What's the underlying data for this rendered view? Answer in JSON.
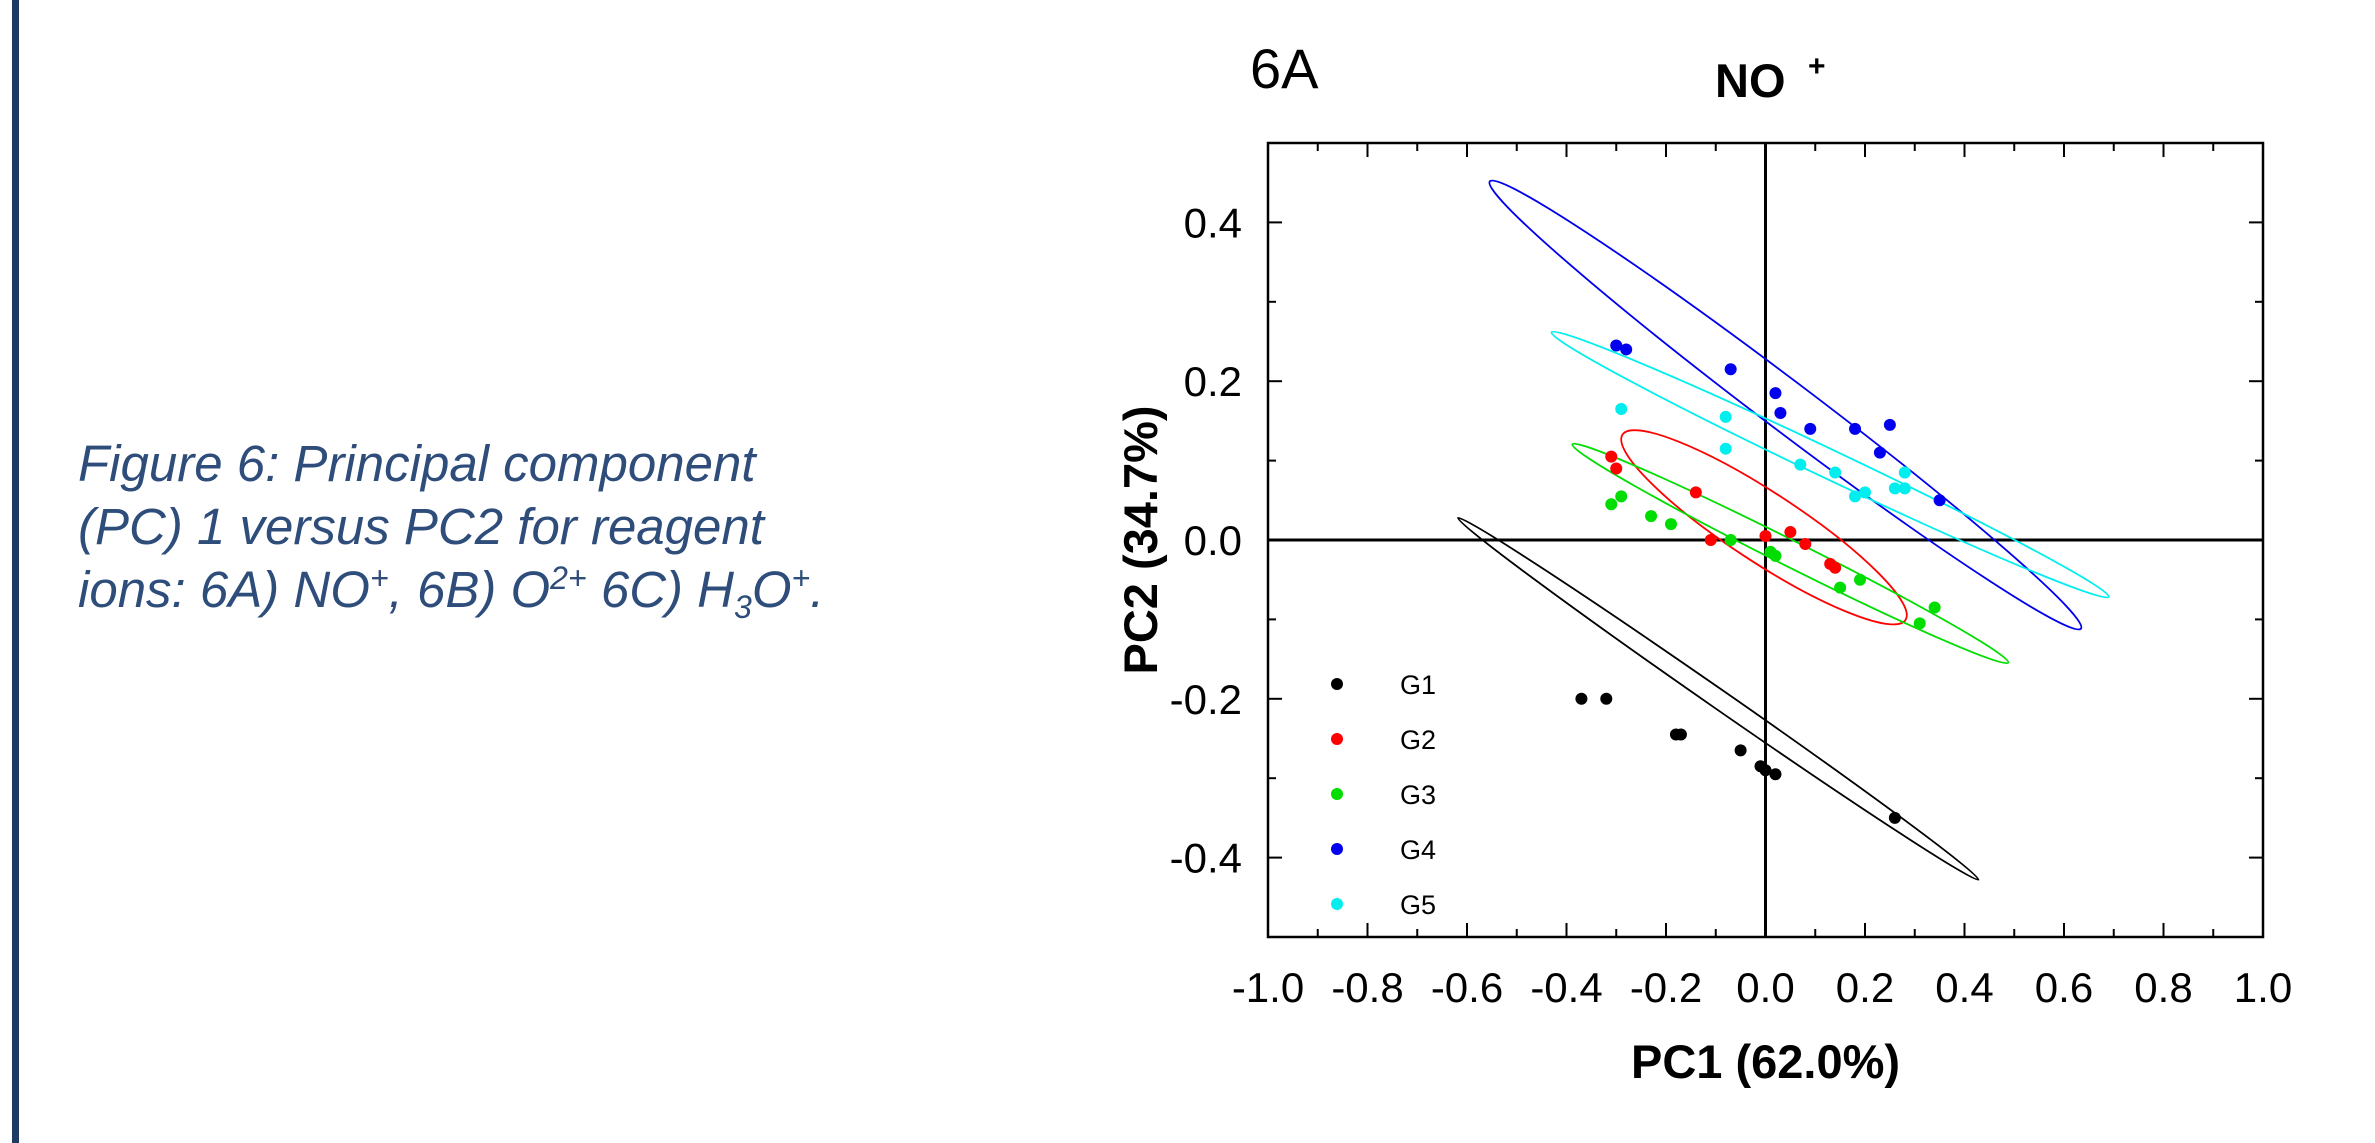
{
  "caption": {
    "line1": " Figure 6: Principal component",
    "line2": "(PC) 1 versus PC2 for reagent",
    "line3_a": "ions: 6A) NO",
    "line3_sup1": "+",
    "line3_b": ", 6B) O",
    "line3_sup2": "2+",
    "line3_c": " 6C) H",
    "line3_sub": "3",
    "line3_d": "O",
    "line3_sup3": "+",
    "line3_e": "."
  },
  "colors": {
    "caption": "#2e4d7a",
    "border": "#1f3a63",
    "G1": "#000000",
    "G2": "#ff0000",
    "G3": "#00dd00",
    "G4": "#0000ee",
    "G5": "#00eeee"
  },
  "chart_data": {
    "type": "scatter",
    "panel_label": "6A",
    "title": "NO",
    "title_sup": "+",
    "xlabel": "PC1 (62.0%)",
    "ylabel": "PC2 (34.7%)",
    "xlim": [
      -1.0,
      1.0
    ],
    "ylim": [
      -0.5,
      0.5
    ],
    "xticks": [
      "-1.0",
      "-0.8",
      "-0.6",
      "-0.4",
      "-0.2",
      "0.0",
      "0.2",
      "0.4",
      "0.6",
      "0.8",
      "1.0"
    ],
    "yticks": [
      "-0.4",
      "-0.2",
      "0.0",
      "0.2",
      "0.4"
    ],
    "legend_position": "bottom-left",
    "series": [
      {
        "name": "G1",
        "color": "#000000",
        "points": [
          [
            -0.37,
            -0.2
          ],
          [
            -0.32,
            -0.2
          ],
          [
            -0.18,
            -0.245
          ],
          [
            -0.17,
            -0.245
          ],
          [
            -0.05,
            -0.265
          ],
          [
            -0.01,
            -0.285
          ],
          [
            0.0,
            -0.29
          ],
          [
            0.02,
            -0.295
          ],
          [
            0.26,
            -0.35
          ]
        ],
        "ellipse": {
          "cx": -0.095,
          "cy": -0.2,
          "rx": 0.637,
          "ry": 0.019,
          "angle_deg": -34.8
        }
      },
      {
        "name": "G2",
        "color": "#ff0000",
        "points": [
          [
            -0.31,
            0.105
          ],
          [
            -0.3,
            0.09
          ],
          [
            -0.14,
            0.06
          ],
          [
            -0.11,
            0.0
          ],
          [
            0.0,
            0.005
          ],
          [
            0.05,
            0.01
          ],
          [
            0.08,
            -0.005
          ],
          [
            0.13,
            -0.03
          ],
          [
            0.14,
            -0.035
          ]
        ],
        "ellipse": {
          "cx": -0.003,
          "cy": 0.016,
          "rx": 0.34,
          "ry": 0.07,
          "angle_deg": -33.2
        }
      },
      {
        "name": "G3",
        "color": "#00dd00",
        "points": [
          [
            -0.31,
            0.045
          ],
          [
            -0.29,
            0.055
          ],
          [
            -0.23,
            0.03
          ],
          [
            -0.19,
            0.02
          ],
          [
            -0.07,
            0.0
          ],
          [
            0.01,
            -0.015
          ],
          [
            0.02,
            -0.02
          ],
          [
            0.15,
            -0.06
          ],
          [
            0.19,
            -0.05
          ],
          [
            0.31,
            -0.105
          ],
          [
            0.34,
            -0.085
          ]
        ],
        "ellipse": {
          "cx": 0.05,
          "cy": -0.017,
          "rx": 0.49,
          "ry": 0.026,
          "angle_deg": -26.6
        }
      },
      {
        "name": "G4",
        "color": "#0000ee",
        "points": [
          [
            -0.3,
            0.245
          ],
          [
            -0.28,
            0.24
          ],
          [
            -0.07,
            0.215
          ],
          [
            0.02,
            0.185
          ],
          [
            0.03,
            0.16
          ],
          [
            0.09,
            0.14
          ],
          [
            0.18,
            0.14
          ],
          [
            0.23,
            0.11
          ],
          [
            0.25,
            0.145
          ],
          [
            0.35,
            0.05
          ]
        ],
        "ellipse": {
          "cx": 0.04,
          "cy": 0.17,
          "rx": 0.745,
          "ry": 0.05,
          "angle_deg": -37.1
        }
      },
      {
        "name": "G5",
        "color": "#00eeee",
        "points": [
          [
            -0.29,
            0.165
          ],
          [
            -0.08,
            0.155
          ],
          [
            -0.08,
            0.115
          ],
          [
            0.07,
            0.095
          ],
          [
            0.14,
            0.085
          ],
          [
            0.18,
            0.055
          ],
          [
            0.2,
            0.06
          ],
          [
            0.26,
            0.065
          ],
          [
            0.28,
            0.065
          ],
          [
            0.28,
            0.085
          ]
        ],
        "ellipse": {
          "cx": 0.13,
          "cy": 0.095,
          "rx": 0.62,
          "ry": 0.029,
          "angle_deg": -25.4
        }
      }
    ]
  }
}
